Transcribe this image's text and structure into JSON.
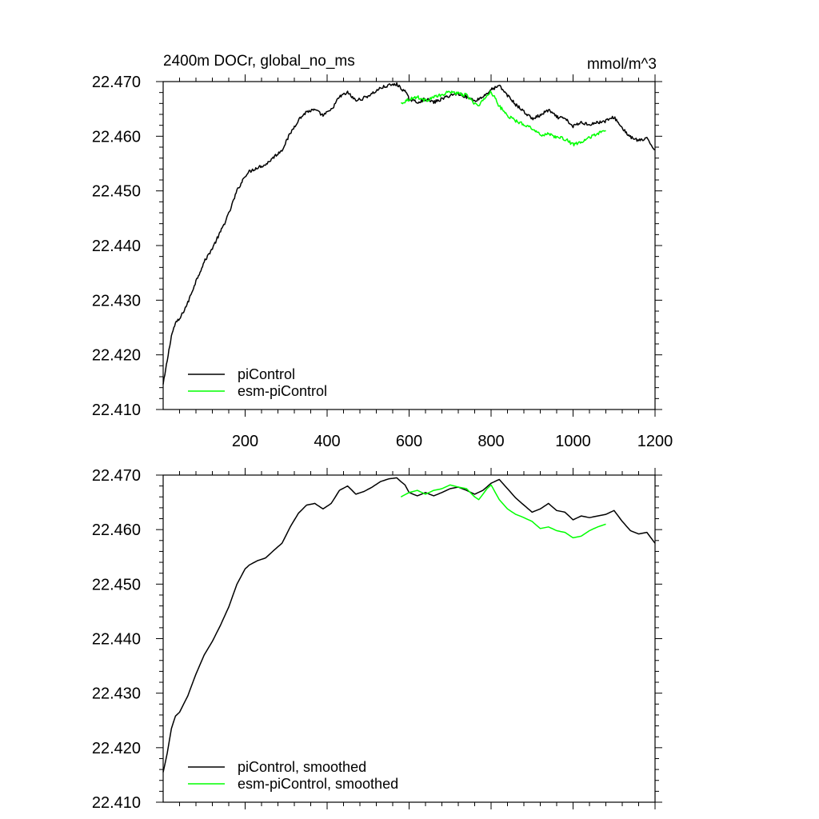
{
  "chart_data": [
    {
      "type": "line",
      "title": "2400m DOCr, global_no_ms",
      "unit_label": "mmol/m^3",
      "xlim": [
        0,
        1200
      ],
      "ylim": [
        22.41,
        22.47
      ],
      "x_ticks": [
        200,
        400,
        600,
        800,
        1000,
        1200
      ],
      "x_tick_labels": [
        "200",
        "400",
        "600",
        "800",
        "1000",
        "1200"
      ],
      "y_ticks": [
        22.41,
        22.42,
        22.43,
        22.44,
        22.45,
        22.46,
        22.47
      ],
      "y_tick_labels": [
        "22.410",
        "22.420",
        "22.430",
        "22.440",
        "22.450",
        "22.460",
        "22.470"
      ],
      "grid": false,
      "legend_position": "bottom-left",
      "series": [
        {
          "name": "piControl",
          "color": "#000000",
          "noisy": true,
          "x": [
            0,
            10,
            20,
            30,
            40,
            50,
            60,
            70,
            80,
            100,
            120,
            140,
            160,
            180,
            200,
            210,
            230,
            250,
            270,
            290,
            310,
            330,
            350,
            370,
            390,
            410,
            430,
            450,
            470,
            490,
            510,
            530,
            550,
            570,
            580,
            590,
            600,
            620,
            640,
            660,
            680,
            700,
            720,
            740,
            760,
            780,
            800,
            820,
            840,
            860,
            880,
            900,
            920,
            940,
            960,
            980,
            1000,
            1020,
            1040,
            1060,
            1080,
            1100,
            1120,
            1140,
            1160,
            1180,
            1200
          ],
          "y": [
            22.4145,
            22.419,
            22.4235,
            22.4258,
            22.4265,
            22.428,
            22.4295,
            22.4315,
            22.4335,
            22.437,
            22.4395,
            22.4425,
            22.4458,
            22.45,
            22.4528,
            22.4535,
            22.4543,
            22.4548,
            22.4562,
            22.4575,
            22.4605,
            22.463,
            22.4645,
            22.4648,
            22.4638,
            22.4648,
            22.4672,
            22.468,
            22.4665,
            22.467,
            22.4678,
            22.4688,
            22.4693,
            22.4695,
            22.4688,
            22.4682,
            22.4668,
            22.4662,
            22.4668,
            22.4662,
            22.4668,
            22.4675,
            22.4678,
            22.4672,
            22.4665,
            22.4672,
            22.4685,
            22.4692,
            22.4675,
            22.4658,
            22.4645,
            22.4632,
            22.4638,
            22.4648,
            22.4635,
            22.4632,
            22.4618,
            22.4625,
            22.4622,
            22.4625,
            22.4628,
            22.4635,
            22.4615,
            22.4598,
            22.4592,
            22.4595,
            22.4575
          ]
        },
        {
          "name": "esm-piControl",
          "color": "#00ff00",
          "noisy": true,
          "x": [
            580,
            600,
            620,
            640,
            660,
            680,
            700,
            720,
            740,
            760,
            770,
            790,
            800,
            820,
            840,
            860,
            880,
            900,
            920,
            940,
            960,
            980,
            1000,
            1020,
            1040,
            1060,
            1080
          ],
          "y": [
            22.466,
            22.4668,
            22.4672,
            22.4665,
            22.4672,
            22.4675,
            22.4682,
            22.4678,
            22.4675,
            22.466,
            22.4655,
            22.4675,
            22.4682,
            22.4655,
            22.4638,
            22.4628,
            22.4622,
            22.4615,
            22.4602,
            22.4605,
            22.4598,
            22.4595,
            22.4585,
            22.4588,
            22.4598,
            22.4605,
            22.461
          ]
        }
      ]
    },
    {
      "type": "line",
      "xlim": [
        0,
        1200
      ],
      "ylim": [
        22.41,
        22.47
      ],
      "x_ticks": [
        200,
        400,
        600,
        800,
        1000,
        1200
      ],
      "y_ticks": [
        22.41,
        22.42,
        22.43,
        22.44,
        22.45,
        22.46,
        22.47
      ],
      "y_tick_labels": [
        "22.410",
        "22.420",
        "22.430",
        "22.440",
        "22.450",
        "22.460",
        "22.470"
      ],
      "grid": false,
      "legend_position": "bottom-left",
      "series": [
        {
          "name": "piControl, smoothed",
          "color": "#000000",
          "noisy": false,
          "x": [
            0,
            10,
            20,
            30,
            40,
            50,
            60,
            70,
            80,
            100,
            120,
            140,
            160,
            180,
            200,
            210,
            230,
            250,
            270,
            290,
            310,
            330,
            350,
            370,
            390,
            410,
            430,
            450,
            470,
            490,
            510,
            530,
            550,
            570,
            580,
            590,
            600,
            620,
            640,
            660,
            680,
            700,
            720,
            740,
            760,
            780,
            800,
            820,
            840,
            860,
            880,
            900,
            920,
            940,
            960,
            980,
            1000,
            1020,
            1040,
            1060,
            1080,
            1100,
            1120,
            1140,
            1160,
            1180,
            1200
          ],
          "y": [
            22.4155,
            22.419,
            22.4235,
            22.4258,
            22.4265,
            22.428,
            22.4295,
            22.4315,
            22.4335,
            22.437,
            22.4395,
            22.4425,
            22.4458,
            22.45,
            22.4528,
            22.4535,
            22.4543,
            22.4548,
            22.4562,
            22.4575,
            22.4605,
            22.463,
            22.4645,
            22.4648,
            22.4638,
            22.4648,
            22.4672,
            22.468,
            22.4665,
            22.467,
            22.4678,
            22.4688,
            22.4693,
            22.4695,
            22.4688,
            22.4682,
            22.4668,
            22.4662,
            22.4668,
            22.4662,
            22.4668,
            22.4675,
            22.4678,
            22.4672,
            22.4665,
            22.4672,
            22.4685,
            22.4692,
            22.4675,
            22.4658,
            22.4645,
            22.4632,
            22.4638,
            22.4648,
            22.4635,
            22.4632,
            22.4618,
            22.4625,
            22.4622,
            22.4625,
            22.4628,
            22.4635,
            22.4615,
            22.4598,
            22.4592,
            22.4595,
            22.4575
          ]
        },
        {
          "name": "esm-piControl, smoothed",
          "color": "#00ff00",
          "noisy": false,
          "x": [
            580,
            600,
            620,
            640,
            660,
            680,
            700,
            720,
            740,
            760,
            770,
            790,
            800,
            820,
            840,
            860,
            880,
            900,
            920,
            940,
            960,
            980,
            1000,
            1020,
            1040,
            1060,
            1080
          ],
          "y": [
            22.466,
            22.4668,
            22.4672,
            22.4665,
            22.4672,
            22.4675,
            22.4682,
            22.4678,
            22.4675,
            22.466,
            22.4655,
            22.4675,
            22.4682,
            22.4655,
            22.4638,
            22.4628,
            22.4622,
            22.4615,
            22.4602,
            22.4605,
            22.4598,
            22.4595,
            22.4585,
            22.4588,
            22.4598,
            22.4605,
            22.461
          ]
        }
      ]
    }
  ]
}
